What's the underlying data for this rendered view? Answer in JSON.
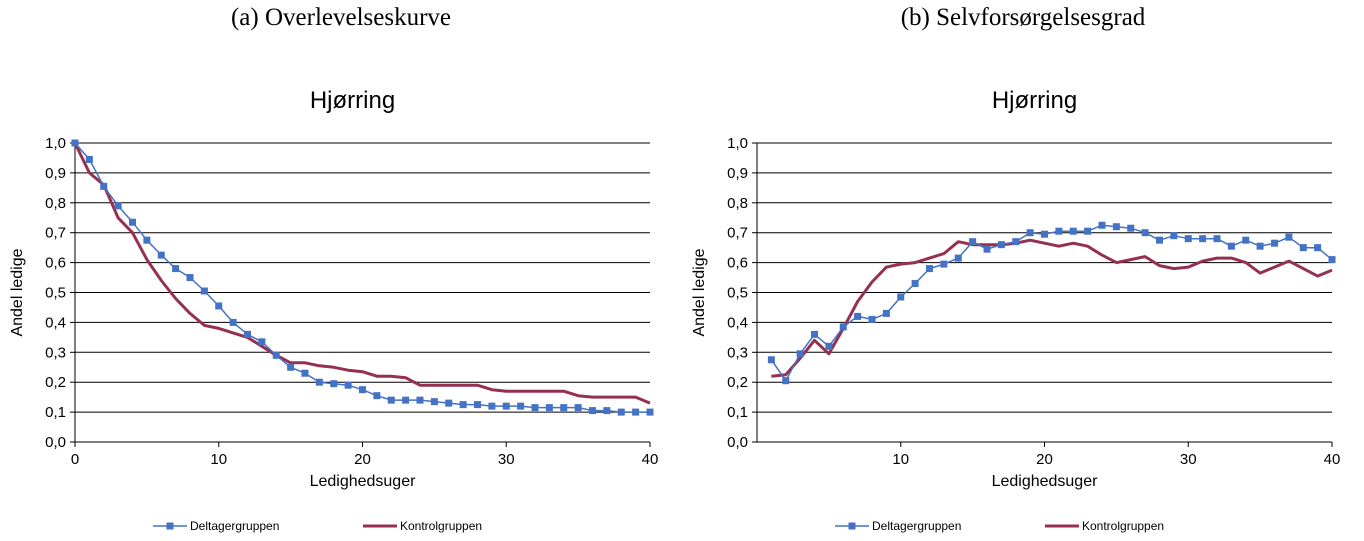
{
  "panels": [
    {
      "caption": "(a) Overlevelseskurve",
      "chart_data": {
        "type": "line",
        "title": "Hjørring",
        "xlabel": "Ledighedsuger",
        "ylabel": "Andel ledige",
        "xlim": [
          0,
          40
        ],
        "ylim": [
          0,
          1
        ],
        "xticks": [
          "0",
          "10",
          "20",
          "30",
          "40"
        ],
        "yticks": [
          "0,0",
          "0,1",
          "0,2",
          "0,3",
          "0,4",
          "0,5",
          "0,6",
          "0,7",
          "0,8",
          "0,9",
          "1,0"
        ],
        "grid": true,
        "legend": "bottom",
        "series": [
          {
            "name": "Deltagergruppen",
            "color": "#4472C4",
            "marker": "square",
            "x": [
              0,
              1,
              2,
              3,
              4,
              5,
              6,
              7,
              8,
              9,
              10,
              11,
              12,
              13,
              14,
              15,
              16,
              17,
              18,
              19,
              20,
              21,
              22,
              23,
              24,
              25,
              26,
              27,
              28,
              29,
              30,
              31,
              32,
              33,
              34,
              35,
              36,
              37,
              38,
              39,
              40
            ],
            "values": [
              1.0,
              0.945,
              0.855,
              0.79,
              0.735,
              0.675,
              0.625,
              0.58,
              0.55,
              0.505,
              0.455,
              0.4,
              0.36,
              0.335,
              0.29,
              0.25,
              0.23,
              0.2,
              0.195,
              0.19,
              0.175,
              0.155,
              0.14,
              0.14,
              0.14,
              0.135,
              0.13,
              0.125,
              0.125,
              0.12,
              0.12,
              0.12,
              0.115,
              0.115,
              0.115,
              0.115,
              0.105,
              0.105,
              0.1,
              0.1,
              0.1
            ]
          },
          {
            "name": "Kontrolgruppen",
            "color": "#953050",
            "marker": "none",
            "x": [
              0,
              1,
              2,
              3,
              4,
              5,
              6,
              7,
              8,
              9,
              10,
              11,
              12,
              13,
              14,
              15,
              16,
              17,
              18,
              19,
              20,
              21,
              22,
              23,
              24,
              25,
              26,
              27,
              28,
              29,
              30,
              31,
              32,
              33,
              34,
              35,
              36,
              37,
              38,
              39,
              40
            ],
            "values": [
              1.0,
              0.9,
              0.86,
              0.75,
              0.7,
              0.61,
              0.54,
              0.48,
              0.43,
              0.39,
              0.38,
              0.365,
              0.35,
              0.32,
              0.29,
              0.265,
              0.265,
              0.255,
              0.25,
              0.24,
              0.235,
              0.22,
              0.22,
              0.215,
              0.19,
              0.19,
              0.19,
              0.19,
              0.19,
              0.175,
              0.17,
              0.17,
              0.17,
              0.17,
              0.17,
              0.155,
              0.15,
              0.15,
              0.15,
              0.15,
              0.13
            ]
          }
        ]
      }
    },
    {
      "caption": "(b) Selvforsørgelsesgrad",
      "chart_data": {
        "type": "line",
        "title": "Hjørring",
        "xlabel": "Ledighedsuger",
        "ylabel": "Andel ledige",
        "xlim": [
          0,
          40
        ],
        "ylim": [
          0,
          1
        ],
        "xticks": [
          "10",
          "20",
          "30",
          "40"
        ],
        "yticks": [
          "0,0",
          "0,1",
          "0,2",
          "0,3",
          "0,4",
          "0,5",
          "0,6",
          "0,7",
          "0,8",
          "0,9",
          "1,0"
        ],
        "grid": true,
        "legend": "bottom",
        "series": [
          {
            "name": "Deltagergruppen",
            "color": "#4472C4",
            "marker": "square",
            "x": [
              1,
              2,
              3,
              4,
              5,
              6,
              7,
              8,
              9,
              10,
              11,
              12,
              13,
              14,
              15,
              16,
              17,
              18,
              19,
              20,
              21,
              22,
              23,
              24,
              25,
              26,
              27,
              28,
              29,
              30,
              31,
              32,
              33,
              34,
              35,
              36,
              37,
              38,
              39,
              40
            ],
            "values": [
              0.275,
              0.205,
              0.295,
              0.36,
              0.32,
              0.385,
              0.42,
              0.41,
              0.43,
              0.485,
              0.53,
              0.58,
              0.595,
              0.615,
              0.67,
              0.645,
              0.66,
              0.67,
              0.7,
              0.695,
              0.705,
              0.705,
              0.705,
              0.725,
              0.72,
              0.715,
              0.7,
              0.675,
              0.69,
              0.68,
              0.68,
              0.68,
              0.655,
              0.675,
              0.655,
              0.665,
              0.685,
              0.65,
              0.65,
              0.61
            ]
          },
          {
            "name": "Kontrolgruppen",
            "color": "#953050",
            "marker": "none",
            "x": [
              1,
              2,
              3,
              4,
              5,
              6,
              7,
              8,
              9,
              10,
              11,
              12,
              13,
              14,
              15,
              16,
              17,
              18,
              19,
              20,
              21,
              22,
              23,
              24,
              25,
              26,
              27,
              28,
              29,
              30,
              31,
              32,
              33,
              34,
              35,
              36,
              37,
              38,
              39,
              40
            ],
            "values": [
              0.22,
              0.225,
              0.28,
              0.34,
              0.295,
              0.38,
              0.47,
              0.535,
              0.585,
              0.595,
              0.6,
              0.615,
              0.63,
              0.67,
              0.66,
              0.66,
              0.66,
              0.665,
              0.675,
              0.665,
              0.655,
              0.665,
              0.655,
              0.625,
              0.6,
              0.61,
              0.62,
              0.59,
              0.58,
              0.585,
              0.605,
              0.615,
              0.615,
              0.6,
              0.565,
              0.585,
              0.605,
              0.58,
              0.555,
              0.575
            ]
          }
        ]
      }
    }
  ]
}
